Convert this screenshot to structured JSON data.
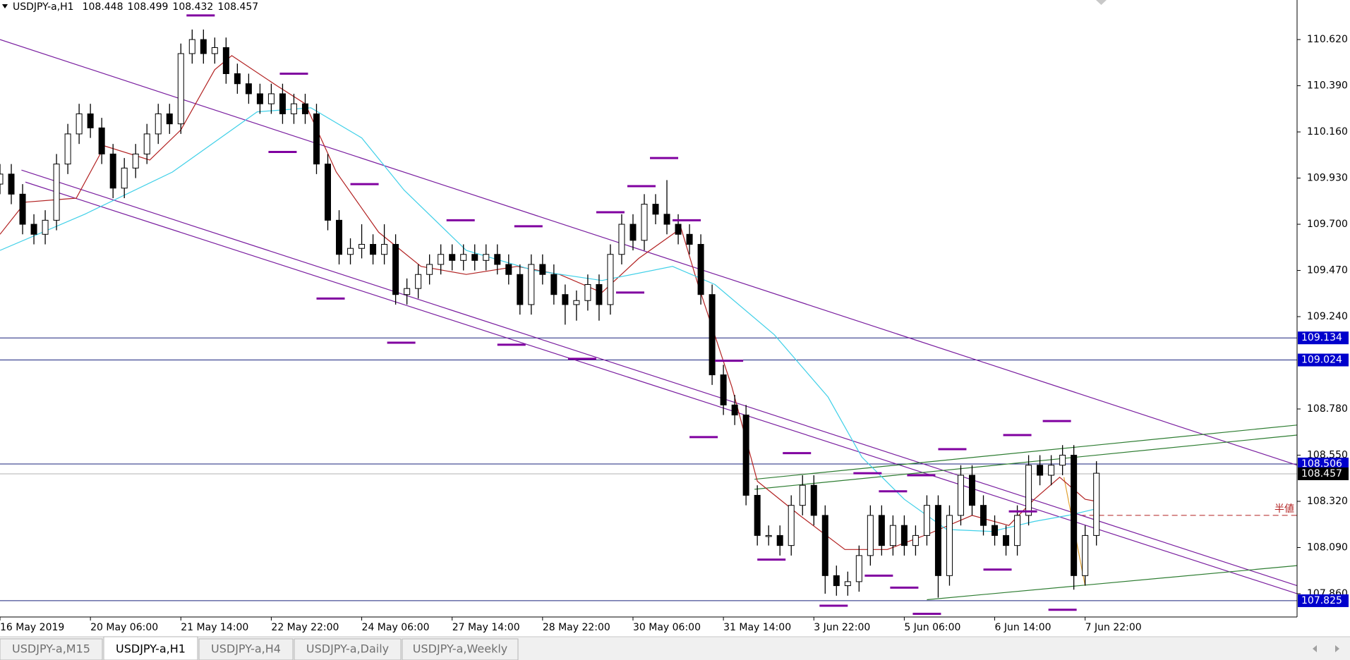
{
  "chart_data": {
    "type": "candlestick",
    "title": "USDJPY-a,H1",
    "header_ohlc": [
      108.448,
      108.499,
      108.432,
      108.457
    ],
    "xlim": [
      0,
      459
    ],
    "xticks": [
      {
        "value": 0,
        "label": "16 May 2019"
      },
      {
        "value": 32,
        "label": "20 May 06:00"
      },
      {
        "value": 64,
        "label": "21 May 14:00"
      },
      {
        "value": 96,
        "label": "22 May 22:00"
      },
      {
        "value": 128,
        "label": "24 May 06:00"
      },
      {
        "value": 160,
        "label": "27 May 14:00"
      },
      {
        "value": 192,
        "label": "28 May 22:00"
      },
      {
        "value": 224,
        "label": "30 May 06:00"
      },
      {
        "value": 256,
        "label": "31 May 14:00"
      },
      {
        "value": 288,
        "label": "3 Jun 22:00"
      },
      {
        "value": 320,
        "label": "5 Jun 06:00"
      },
      {
        "value": 352,
        "label": "6 Jun 14:00"
      },
      {
        "value": 384,
        "label": "7 Jun 22:00"
      }
    ],
    "ylim": [
      107.744,
      110.817
    ],
    "yticks": [
      {
        "value": 110.62,
        "label": "110.620"
      },
      {
        "value": 110.39,
        "label": "110.390"
      },
      {
        "value": 110.16,
        "label": "110.160"
      },
      {
        "value": 109.93,
        "label": "109.930"
      },
      {
        "value": 109.7,
        "label": "109.700"
      },
      {
        "value": 109.47,
        "label": "109.470"
      },
      {
        "value": 109.24,
        "label": "109.240"
      },
      {
        "value": 108.78,
        "label": "108.780"
      },
      {
        "value": 108.55,
        "label": "108.550"
      },
      {
        "value": 108.32,
        "label": "108.320"
      },
      {
        "value": 108.09,
        "label": "108.090"
      },
      {
        "value": 107.86,
        "label": "107.860"
      }
    ],
    "x": [
      0,
      4,
      8,
      12,
      16,
      20,
      24,
      28,
      32,
      36,
      40,
      44,
      48,
      52,
      56,
      60,
      64,
      68,
      72,
      76,
      80,
      84,
      88,
      92,
      96,
      100,
      104,
      108,
      112,
      116,
      120,
      124,
      128,
      132,
      136,
      140,
      144,
      148,
      152,
      156,
      160,
      164,
      168,
      172,
      176,
      180,
      184,
      188,
      192,
      196,
      200,
      204,
      208,
      212,
      216,
      220,
      224,
      228,
      232,
      236,
      240,
      244,
      248,
      252,
      256,
      260,
      264,
      268,
      272,
      276,
      280,
      284,
      288,
      292,
      296,
      300,
      304,
      308,
      312,
      316,
      320,
      324,
      328,
      332,
      336,
      340,
      344,
      348,
      352,
      356,
      360,
      364,
      368,
      372,
      376,
      380,
      384,
      388
    ],
    "ohlc": [
      [
        109.9,
        110.0,
        109.85,
        109.95
      ],
      [
        109.95,
        110.0,
        109.8,
        109.85
      ],
      [
        109.85,
        109.9,
        109.65,
        109.7
      ],
      [
        109.7,
        109.75,
        109.6,
        109.65
      ],
      [
        109.65,
        109.77,
        109.6,
        109.72
      ],
      [
        109.72,
        110.05,
        109.67,
        110.0
      ],
      [
        110.0,
        110.2,
        109.95,
        110.15
      ],
      [
        110.15,
        110.3,
        110.1,
        110.25
      ],
      [
        110.25,
        110.3,
        110.13,
        110.18
      ],
      [
        110.18,
        110.23,
        110.0,
        110.05
      ],
      [
        110.05,
        110.1,
        109.83,
        109.88
      ],
      [
        109.88,
        110.03,
        109.83,
        109.98
      ],
      [
        109.98,
        110.1,
        109.93,
        110.05
      ],
      [
        110.05,
        110.2,
        110.0,
        110.15
      ],
      [
        110.15,
        110.3,
        110.1,
        110.25
      ],
      [
        110.25,
        110.3,
        110.15,
        110.2
      ],
      [
        110.2,
        110.6,
        110.15,
        110.55
      ],
      [
        110.55,
        110.67,
        110.5,
        110.62
      ],
      [
        110.62,
        110.67,
        110.5,
        110.55
      ],
      [
        110.55,
        110.63,
        110.5,
        110.58
      ],
      [
        110.58,
        110.63,
        110.4,
        110.45
      ],
      [
        110.45,
        110.5,
        110.35,
        110.4
      ],
      [
        110.4,
        110.45,
        110.3,
        110.35
      ],
      [
        110.35,
        110.4,
        110.25,
        110.3
      ],
      [
        110.3,
        110.4,
        110.25,
        110.35
      ],
      [
        110.35,
        110.4,
        110.2,
        110.25
      ],
      [
        110.25,
        110.35,
        110.2,
        110.3
      ],
      [
        110.3,
        110.35,
        110.2,
        110.25
      ],
      [
        110.25,
        110.3,
        109.95,
        110.0
      ],
      [
        110.0,
        110.05,
        109.67,
        109.72
      ],
      [
        109.72,
        109.77,
        109.5,
        109.55
      ],
      [
        109.55,
        109.63,
        109.5,
        109.58
      ],
      [
        109.58,
        109.7,
        109.53,
        109.6
      ],
      [
        109.6,
        109.65,
        109.5,
        109.55
      ],
      [
        109.55,
        109.7,
        109.5,
        109.6
      ],
      [
        109.6,
        109.65,
        109.3,
        109.35
      ],
      [
        109.35,
        109.43,
        109.3,
        109.38
      ],
      [
        109.38,
        109.5,
        109.33,
        109.45
      ],
      [
        109.45,
        109.55,
        109.4,
        109.5
      ],
      [
        109.5,
        109.6,
        109.45,
        109.55
      ],
      [
        109.55,
        109.6,
        109.47,
        109.52
      ],
      [
        109.52,
        109.6,
        109.47,
        109.55
      ],
      [
        109.55,
        109.6,
        109.47,
        109.52
      ],
      [
        109.52,
        109.6,
        109.47,
        109.55
      ],
      [
        109.55,
        109.6,
        109.45,
        109.5
      ],
      [
        109.5,
        109.55,
        109.4,
        109.45
      ],
      [
        109.45,
        109.5,
        109.25,
        109.3
      ],
      [
        109.3,
        109.55,
        109.25,
        109.5
      ],
      [
        109.5,
        109.55,
        109.4,
        109.45
      ],
      [
        109.45,
        109.5,
        109.3,
        109.35
      ],
      [
        109.35,
        109.4,
        109.2,
        109.3
      ],
      [
        109.3,
        109.37,
        109.22,
        109.32
      ],
      [
        109.32,
        109.45,
        109.27,
        109.4
      ],
      [
        109.4,
        109.45,
        109.22,
        109.3
      ],
      [
        109.3,
        109.6,
        109.25,
        109.55
      ],
      [
        109.55,
        109.75,
        109.5,
        109.7
      ],
      [
        109.7,
        109.75,
        109.57,
        109.62
      ],
      [
        109.62,
        109.85,
        109.57,
        109.8
      ],
      [
        109.8,
        109.85,
        109.7,
        109.75
      ],
      [
        109.75,
        109.92,
        109.65,
        109.7
      ],
      [
        109.7,
        109.75,
        109.6,
        109.65
      ],
      [
        109.65,
        109.7,
        109.55,
        109.6
      ],
      [
        109.6,
        109.65,
        109.3,
        109.35
      ],
      [
        109.35,
        109.4,
        108.9,
        108.95
      ],
      [
        108.95,
        109.0,
        108.75,
        108.8
      ],
      [
        108.8,
        108.85,
        108.7,
        108.75
      ],
      [
        108.75,
        108.8,
        108.3,
        108.35
      ],
      [
        108.35,
        108.4,
        108.1,
        108.15
      ],
      [
        108.15,
        108.2,
        108.1,
        108.15
      ],
      [
        108.15,
        108.2,
        108.05,
        108.1
      ],
      [
        108.1,
        108.35,
        108.05,
        108.3
      ],
      [
        108.3,
        108.45,
        108.25,
        108.4
      ],
      [
        108.4,
        108.45,
        108.2,
        108.25
      ],
      [
        108.25,
        108.3,
        107.86,
        107.95
      ],
      [
        107.95,
        108.0,
        107.85,
        107.9
      ],
      [
        107.9,
        107.97,
        107.85,
        107.92
      ],
      [
        107.92,
        108.1,
        107.87,
        108.05
      ],
      [
        108.05,
        108.3,
        108.0,
        108.25
      ],
      [
        108.25,
        108.3,
        108.05,
        108.1
      ],
      [
        108.1,
        108.25,
        108.05,
        108.2
      ],
      [
        108.2,
        108.25,
        108.05,
        108.1
      ],
      [
        108.1,
        108.2,
        108.05,
        108.15
      ],
      [
        108.15,
        108.35,
        108.1,
        108.3
      ],
      [
        108.3,
        108.35,
        107.84,
        107.95
      ],
      [
        107.95,
        108.3,
        107.9,
        108.25
      ],
      [
        108.25,
        108.5,
        108.2,
        108.45
      ],
      [
        108.45,
        108.5,
        108.25,
        108.3
      ],
      [
        108.3,
        108.35,
        108.15,
        108.2
      ],
      [
        108.2,
        108.25,
        108.1,
        108.15
      ],
      [
        108.15,
        108.2,
        108.05,
        108.1
      ],
      [
        108.1,
        108.3,
        108.05,
        108.25
      ],
      [
        108.25,
        108.55,
        108.2,
        108.5
      ],
      [
        108.5,
        108.55,
        108.4,
        108.45
      ],
      [
        108.45,
        108.55,
        108.4,
        108.5
      ],
      [
        108.5,
        108.6,
        108.45,
        108.55
      ],
      [
        108.55,
        108.6,
        107.88,
        107.95
      ],
      [
        107.95,
        108.2,
        107.9,
        108.15
      ],
      [
        108.15,
        108.52,
        108.1,
        108.46
      ]
    ],
    "series": [
      {
        "color": "#b22222",
        "x": [
          0,
          9,
          27,
          37,
          53,
          64,
          76,
          82,
          98,
          108,
          119,
          134,
          149,
          165,
          183,
          198,
          213,
          226,
          241,
          247,
          259,
          268,
          283,
          299,
          314,
          329,
          344,
          357,
          366,
          375,
          384,
          388
        ],
        "values": [
          109.65,
          109.81,
          109.83,
          110.09,
          110.02,
          110.17,
          110.47,
          110.54,
          110.39,
          110.3,
          109.96,
          109.66,
          109.49,
          109.45,
          109.49,
          109.45,
          109.36,
          109.53,
          109.68,
          109.4,
          108.89,
          108.42,
          108.25,
          108.08,
          108.08,
          108.16,
          108.25,
          108.2,
          108.33,
          108.44,
          108.33,
          108.32
        ]
      },
      {
        "color": "#40d0e8",
        "x": [
          0,
          30,
          61,
          91,
          110,
          128,
          143,
          165,
          189,
          213,
          238,
          253,
          274,
          293,
          305,
          320,
          335,
          351,
          366,
          378,
          387
        ],
        "values": [
          109.57,
          109.75,
          109.96,
          110.26,
          110.28,
          110.13,
          109.87,
          109.57,
          109.47,
          109.42,
          109.49,
          109.4,
          109.15,
          108.84,
          108.54,
          108.33,
          108.18,
          108.17,
          108.22,
          108.25,
          108.28
        ]
      }
    ],
    "trendlines": [
      {
        "color": "#7a1fa0",
        "x": [
          0,
          459
        ],
        "values": [
          110.62,
          108.5
        ]
      },
      {
        "color": "#7a1fa0",
        "x": [
          7.6,
          459
        ],
        "values": [
          109.97,
          107.9
        ]
      },
      {
        "color": "#7a1fa0",
        "x": [
          9,
          459
        ],
        "values": [
          109.91,
          107.86
        ]
      },
      {
        "color": "#2e7d32",
        "x": [
          267,
          459
        ],
        "values": [
          108.43,
          108.7
        ]
      },
      {
        "color": "#2e7d32",
        "x": [
          267,
          459
        ],
        "values": [
          108.38,
          108.65
        ]
      },
      {
        "color": "#2e7d32",
        "x": [
          328,
          459
        ],
        "values": [
          107.83,
          108.0
        ]
      },
      {
        "color": "#e0a030",
        "x": [
          376.5,
          384
        ],
        "values": [
          108.44,
          107.9
        ]
      }
    ],
    "hlines": [
      {
        "value": 109.134,
        "color": "#1a237e",
        "label_bg": "#0000cc"
      },
      {
        "value": 109.024,
        "color": "#1a237e",
        "label_bg": "#0000cc"
      },
      {
        "value": 108.506,
        "color": "#1a237e",
        "label_bg": "#0000cc"
      },
      {
        "value": 108.457,
        "color": "#b0b0b0",
        "label_bg": "#000000"
      },
      {
        "value": 107.825,
        "color": "#1a237e",
        "label_bg": "#0000cc"
      }
    ],
    "half_line": {
      "label": "半値",
      "value": 108.25,
      "x_start": 379,
      "color": "#b22222"
    },
    "markers": {
      "color": "#8000a0",
      "x": [
        71,
        104,
        100,
        129,
        117,
        142,
        163,
        187,
        181,
        206,
        216,
        227,
        235,
        243,
        223,
        249,
        258,
        282,
        273,
        295,
        307,
        311,
        316,
        320,
        326,
        328,
        337,
        353,
        360,
        362,
        374,
        376
      ],
      "values": [
        110.74,
        110.45,
        110.06,
        109.9,
        109.33,
        109.11,
        109.72,
        109.69,
        109.1,
        109.03,
        109.76,
        109.89,
        110.03,
        109.72,
        109.36,
        108.64,
        109.02,
        108.56,
        108.03,
        107.8,
        108.46,
        107.95,
        108.37,
        107.89,
        108.45,
        107.76,
        108.58,
        107.98,
        108.65,
        108.27,
        108.72,
        107.78
      ]
    }
  },
  "tabs": [
    "USDJPY-a,M15",
    "USDJPY-a,H1",
    "USDJPY-a,H4",
    "USDJPY-a,Daily",
    "USDJPY-a,Weekly"
  ],
  "active_tab": 1
}
